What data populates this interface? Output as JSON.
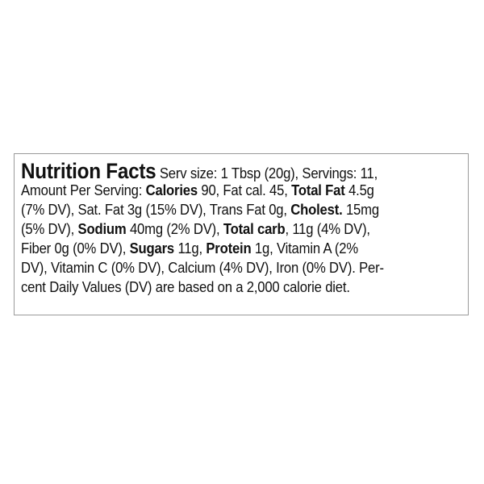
{
  "label": {
    "lines": [
      [
        {
          "t": "Nutrition Facts",
          "s": "title"
        },
        {
          "t": " Serv size: 1 Tbsp (20g), Servings: 11,"
        }
      ],
      [
        {
          "t": "Amount Per Serving: "
        },
        {
          "t": "Calories",
          "s": "b"
        },
        {
          "t": " 90, Fat cal. 45, "
        },
        {
          "t": "Total Fat",
          "s": "b"
        },
        {
          "t": " 4.5g"
        }
      ],
      [
        {
          "t": "(7% DV), Sat. Fat 3g (15% DV), Trans Fat 0g, "
        },
        {
          "t": "Cholest.",
          "s": "b"
        },
        {
          "t": " 15mg"
        }
      ],
      [
        {
          "t": "(5% DV), "
        },
        {
          "t": "Sodium",
          "s": "b"
        },
        {
          "t": " 40mg (2% DV), "
        },
        {
          "t": "Total carb",
          "s": "b"
        },
        {
          "t": ", 11g (4% DV),"
        }
      ],
      [
        {
          "t": "Fiber 0g (0% DV), "
        },
        {
          "t": "Sugars",
          "s": "b"
        },
        {
          "t": " 11g, "
        },
        {
          "t": "Protein",
          "s": "b"
        },
        {
          "t": " 1g, Vitamin A (2%"
        }
      ],
      [
        {
          "t": "DV), Vitamin C (0% DV), Calcium (4% DV), Iron (0% DV). Per-"
        }
      ],
      [
        {
          "t": "cent Daily Values (DV) are based on a 2,000 calorie diet."
        }
      ]
    ],
    "border_color": "#9a9a9a"
  }
}
